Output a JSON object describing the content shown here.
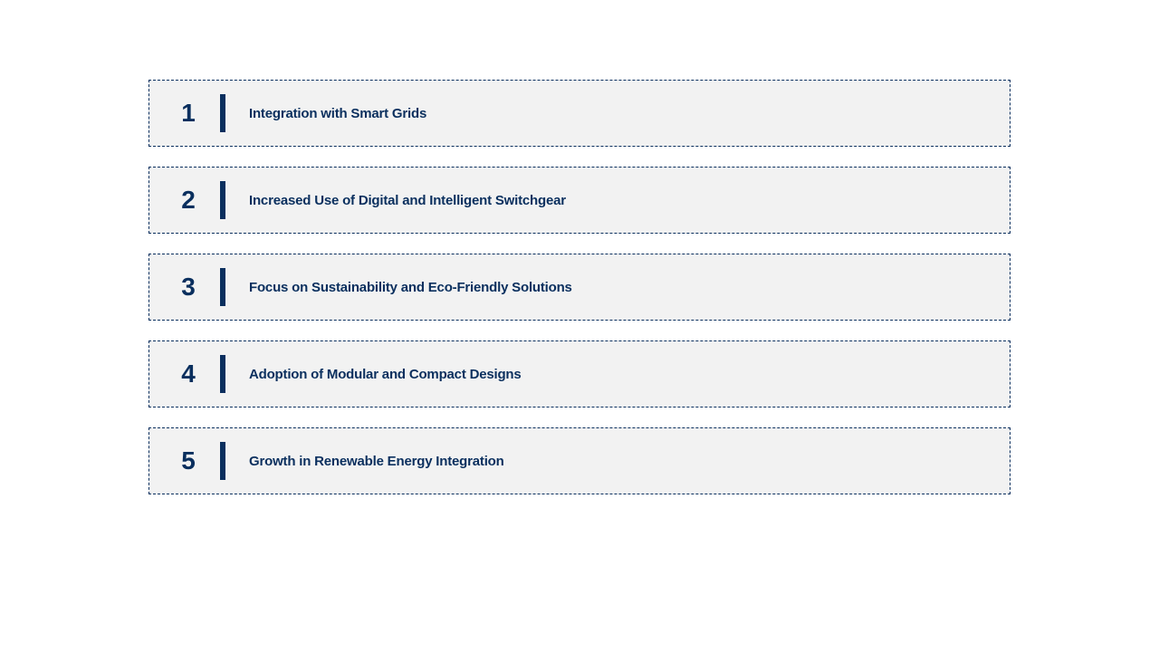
{
  "type": "infographic",
  "background_color": "#ffffff",
  "item_style": {
    "background_color": "#f2f2f2",
    "border_color": "#0a2f5e",
    "border_style": "dashed",
    "border_width": 1.5,
    "height": 74,
    "gap": 22
  },
  "number_style": {
    "font_size": 28,
    "font_weight": "bold",
    "color": "#0a2f5e"
  },
  "divider_style": {
    "width": 6,
    "height": 42,
    "color": "#0a2f5e"
  },
  "label_style": {
    "font_size": 15,
    "font_weight": "bold",
    "color": "#0a2f5e"
  },
  "items": [
    {
      "number": "1",
      "label": "Integration with Smart Grids"
    },
    {
      "number": "2",
      "label": "Increased Use of Digital and Intelligent Switchgear"
    },
    {
      "number": "3",
      "label": "Focus on Sustainability and Eco-Friendly Solutions"
    },
    {
      "number": "4",
      "label": "Adoption of Modular and Compact Designs"
    },
    {
      "number": "5",
      "label": "Growth in Renewable Energy Integration"
    }
  ]
}
